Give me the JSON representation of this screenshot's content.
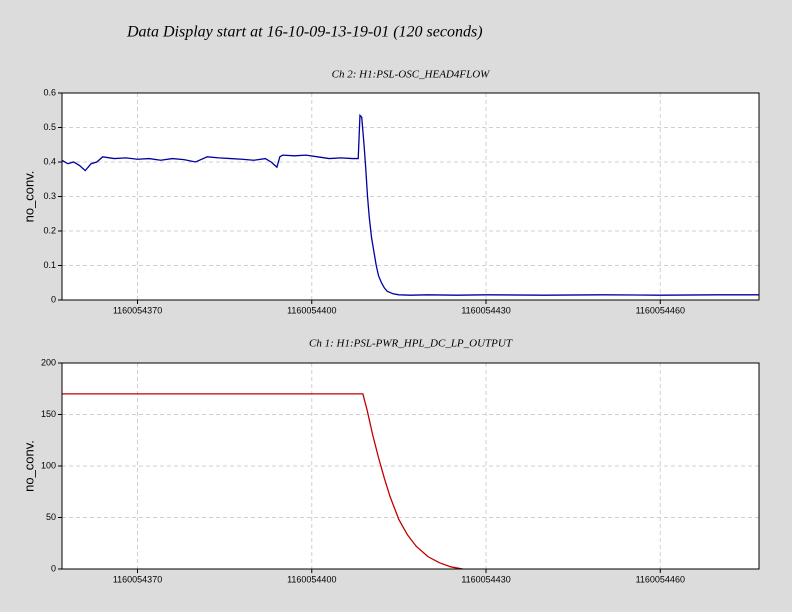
{
  "title": "Data Display start at 16-10-09-13-19-01 (120 seconds)",
  "chart_data": [
    {
      "type": "line",
      "title": "Ch 2: H1:PSL-OSC_HEAD4FLOW",
      "y_label": "no_conv.",
      "xlim": [
        1160054357,
        1160054477
      ],
      "xticks": [
        1160054370,
        1160054400,
        1160054430,
        1160054460
      ],
      "ylim": [
        0,
        0.6
      ],
      "yticks": [
        0,
        0.1,
        0.2,
        0.3,
        0.4,
        0.5,
        0.6
      ],
      "grid": true,
      "series": [
        {
          "color": "#0000a0",
          "x": [
            1160054357,
            1160054358,
            1160054359,
            1160054360,
            1160054361,
            1160054362,
            1160054363,
            1160054364,
            1160054366,
            1160054368,
            1160054370,
            1160054372,
            1160054374,
            1160054376,
            1160054378,
            1160054380,
            1160054382,
            1160054384,
            1160054386,
            1160054388,
            1160054390,
            1160054392,
            1160054393,
            1160054394,
            1160054394.5,
            1160054395,
            1160054397,
            1160054399,
            1160054401,
            1160054403,
            1160054405,
            1160054407,
            1160054408,
            1160054408.3,
            1160054408.6,
            1160054409,
            1160054409.3,
            1160054409.6,
            1160054409.9,
            1160054410.3,
            1160054410.7,
            1160054411.1,
            1160054411.5,
            1160054412,
            1160054412.5,
            1160054413,
            1160054414,
            1160054415,
            1160054417,
            1160054420,
            1160054425,
            1160054430,
            1160054440,
            1160054450,
            1160054460,
            1160054470,
            1160054477
          ],
          "values": [
            0.405,
            0.395,
            0.4,
            0.39,
            0.375,
            0.395,
            0.4,
            0.415,
            0.41,
            0.412,
            0.408,
            0.41,
            0.405,
            0.41,
            0.407,
            0.4,
            0.415,
            0.412,
            0.41,
            0.408,
            0.405,
            0.41,
            0.4,
            0.385,
            0.415,
            0.42,
            0.418,
            0.42,
            0.415,
            0.41,
            0.412,
            0.41,
            0.41,
            0.535,
            0.53,
            0.45,
            0.38,
            0.3,
            0.24,
            0.18,
            0.14,
            0.1,
            0.07,
            0.05,
            0.035,
            0.025,
            0.018,
            0.015,
            0.014,
            0.015,
            0.014,
            0.015,
            0.014,
            0.015,
            0.014,
            0.015,
            0.015
          ]
        }
      ]
    },
    {
      "type": "line",
      "title": "Ch 1: H1:PSL-PWR_HPL_DC_LP_OUTPUT",
      "y_label": "no_conv.",
      "xlim": [
        1160054357,
        1160054477
      ],
      "xticks": [
        1160054370,
        1160054400,
        1160054430,
        1160054460
      ],
      "ylim": [
        0,
        200
      ],
      "yticks": [
        0,
        50,
        100,
        150,
        200
      ],
      "grid": true,
      "series": [
        {
          "color": "#c00000",
          "x": [
            1160054357,
            1160054370,
            1160054380,
            1160054390,
            1160054400,
            1160054408.8,
            1160054409.5,
            1160054410.5,
            1160054411.5,
            1160054412.5,
            1160054413.5,
            1160054415,
            1160054416.5,
            1160054418,
            1160054420,
            1160054422,
            1160054424,
            1160054426
          ],
          "values": [
            170,
            170,
            170,
            170,
            170,
            170,
            155,
            130,
            108,
            88,
            70,
            48,
            33,
            22,
            12,
            6,
            2,
            0
          ]
        }
      ]
    }
  ]
}
